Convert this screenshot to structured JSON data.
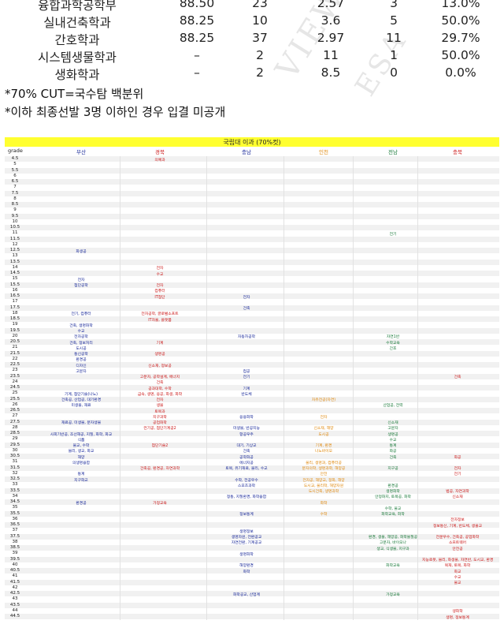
{
  "table": {
    "rows": [
      {
        "dept": "융합과학공학부",
        "c1": "88.50",
        "c2": "23",
        "c3": "2.57",
        "c4": "3",
        "c5": "13.0%"
      },
      {
        "dept": "실내건축학과",
        "c1": "88.25",
        "c2": "10",
        "c3": "3.6",
        "c4": "5",
        "c5": "50.0%"
      },
      {
        "dept": "간호학과",
        "c1": "88.25",
        "c2": "37",
        "c3": "2.97",
        "c4": "11",
        "c5": "29.7%"
      },
      {
        "dept": "시스템생물학과",
        "c1": "–",
        "c2": "2",
        "c3": "11",
        "c4": "1",
        "c5": "50.0%"
      },
      {
        "dept": "생화학과",
        "c1": "–",
        "c2": "2",
        "c3": "8.5",
        "c4": "0",
        "c5": "0.0%"
      }
    ],
    "notes": [
      "*70% CUT=국수탐 백분위",
      "*이하 최종선발 3명 이하인 경우 입결 미공개"
    ]
  },
  "sheet": {
    "title": "국립대 이과 (70%컷)",
    "corner": "grade",
    "regions": [
      "부산",
      "경북",
      "충남",
      "인천",
      "전남",
      "충북"
    ],
    "region_colors": [
      "#1a2a9a",
      "#cc1a1a",
      "#1a2a9a",
      "#e08a10",
      "#1a7a3a",
      "#cc1a1a"
    ],
    "levels": [
      "4.5",
      "5",
      "5.5",
      "6",
      "6.5",
      "7",
      "7.5",
      "8",
      "8.5",
      "9",
      "9.5",
      "10",
      "10.5",
      "11",
      "11.5",
      "12",
      "12.5",
      "13",
      "13.5",
      "14",
      "14.5",
      "15",
      "15.5",
      "16",
      "16.5",
      "17",
      "17.5",
      "18",
      "18.5",
      "19",
      "19.5",
      "20",
      "20.5",
      "21",
      "21.5",
      "22",
      "22.5",
      "23",
      "23.5",
      "24",
      "24.5",
      "25",
      "25.5",
      "26",
      "26.5",
      "27",
      "27.5",
      "28",
      "28.5",
      "29",
      "29.5",
      "30",
      "30.5",
      "31",
      "31.5",
      "32",
      "32.5",
      "33",
      "33.5",
      "34",
      "34.5",
      "35",
      "35.5",
      "36",
      "36.5",
      "37",
      "37.5",
      "38",
      "38.5",
      "39",
      "39.5",
      "40",
      "40.5",
      "41",
      "41.5",
      "42",
      "42.5",
      "43",
      "43.5",
      "44",
      "44.5"
    ],
    "entries": [
      {
        "row": 0,
        "col": 1,
        "text": "의예과"
      },
      {
        "row": 13,
        "col": 4,
        "text": "전기"
      },
      {
        "row": 16,
        "col": 0,
        "text": "화생공"
      },
      {
        "row": 19,
        "col": 1,
        "text": "전자"
      },
      {
        "row": 20,
        "col": 1,
        "text": "수교"
      },
      {
        "row": 21,
        "col": 0,
        "text": "전자"
      },
      {
        "row": 22,
        "col": 0,
        "text": "첨단공학"
      },
      {
        "row": 22,
        "col": 1,
        "text": "전자"
      },
      {
        "row": 23,
        "col": 1,
        "text": "컴퓨터"
      },
      {
        "row": 24,
        "col": 1,
        "text": "IT첨단"
      },
      {
        "row": 24,
        "col": 2,
        "text": "전자"
      },
      {
        "row": 26,
        "col": 2,
        "text": "건축"
      },
      {
        "row": 27,
        "col": 0,
        "text": "전기, 컴퓨터"
      },
      {
        "row": 27,
        "col": 1,
        "text": "전자공학, 글로벌소프트"
      },
      {
        "row": 28,
        "col": 1,
        "text": "IT자율, 플랫폼"
      },
      {
        "row": 29,
        "col": 0,
        "text": "건축, 생명화학"
      },
      {
        "row": 30,
        "col": 0,
        "text": "수교"
      },
      {
        "row": 31,
        "col": 0,
        "text": "전자공학"
      },
      {
        "row": 31,
        "col": 2,
        "text": "자동차공학"
      },
      {
        "row": 31,
        "col": 4,
        "text": "자연1반"
      },
      {
        "row": 32,
        "col": 0,
        "text": "건축, 정보처리"
      },
      {
        "row": 32,
        "col": 1,
        "text": "기계"
      },
      {
        "row": 32,
        "col": 4,
        "text": "수학교육"
      },
      {
        "row": 33,
        "col": 0,
        "text": "도시공"
      },
      {
        "row": 33,
        "col": 4,
        "text": "간호"
      },
      {
        "row": 34,
        "col": 0,
        "text": "통신공학"
      },
      {
        "row": 34,
        "col": 1,
        "text": "생명공"
      },
      {
        "row": 35,
        "col": 0,
        "text": "환경공"
      },
      {
        "row": 36,
        "col": 0,
        "text": "디자인"
      },
      {
        "row": 36,
        "col": 1,
        "text": "신소재, 정보공"
      },
      {
        "row": 37,
        "col": 0,
        "text": "고분자"
      },
      {
        "row": 37,
        "col": 2,
        "text": "컴공"
      },
      {
        "row": 38,
        "col": 1,
        "text": "고분자, 공학설계, 에너지"
      },
      {
        "row": 38,
        "col": 2,
        "text": "전기"
      },
      {
        "row": 38,
        "col": 5,
        "text": "건축"
      },
      {
        "row": 39,
        "col": 1,
        "text": "건축"
      },
      {
        "row": 40,
        "col": 1,
        "text": "공과대학, 수학"
      },
      {
        "row": 40,
        "col": 2,
        "text": "기계"
      },
      {
        "row": 41,
        "col": 0,
        "text": "기계, 첨단기술(나노)"
      },
      {
        "row": 41,
        "col": 1,
        "text": "금속, 생명, 응공, 화생, 화학"
      },
      {
        "row": 41,
        "col": 2,
        "text": "반도체"
      },
      {
        "row": 42,
        "col": 0,
        "text": "건축공, 산업공, 대기환경"
      },
      {
        "row": 42,
        "col": 1,
        "text": "전자"
      },
      {
        "row": 42,
        "col": 3,
        "text": "자유전공(자연)"
      },
      {
        "row": 43,
        "col": 0,
        "text": "미생물, 재료"
      },
      {
        "row": 43,
        "col": 1,
        "text": "생물"
      },
      {
        "row": 43,
        "col": 4,
        "text": "산업공, 전력"
      },
      {
        "row": 44,
        "col": 1,
        "text": "토목과"
      },
      {
        "row": 45,
        "col": 1,
        "text": "지구과학"
      },
      {
        "row": 45,
        "col": 2,
        "text": "응용화학"
      },
      {
        "row": 45,
        "col": 3,
        "text": "전자"
      },
      {
        "row": 46,
        "col": 0,
        "text": "재료공, 미생물, 분자생물"
      },
      {
        "row": 46,
        "col": 1,
        "text": "공업화학"
      },
      {
        "row": 46,
        "col": 4,
        "text": "신소재"
      },
      {
        "row": 47,
        "col": 1,
        "text": "컨기공, 첨단기계공2"
      },
      {
        "row": 47,
        "col": 2,
        "text": "미생물, 반공지능"
      },
      {
        "row": 47,
        "col": 3,
        "text": "신소재, 해양"
      },
      {
        "row": 47,
        "col": 4,
        "text": "고분자"
      },
      {
        "row": 48,
        "col": 0,
        "text": "사회기반공, 조선해공, 지질, 화학, 화교"
      },
      {
        "row": 48,
        "col": 2,
        "text": "항공우주"
      },
      {
        "row": 48,
        "col": 3,
        "text": "도시공"
      },
      {
        "row": 48,
        "col": 4,
        "text": "생명공"
      },
      {
        "row": 49,
        "col": 0,
        "text": "식품"
      },
      {
        "row": 49,
        "col": 4,
        "text": "수교"
      },
      {
        "row": 50,
        "col": 0,
        "text": "물교, 수학"
      },
      {
        "row": 50,
        "col": 1,
        "text": "첨단기술2"
      },
      {
        "row": 50,
        "col": 2,
        "text": "대기, 기상교"
      },
      {
        "row": 50,
        "col": 3,
        "text": "기계, 환경"
      },
      {
        "row": 50,
        "col": 4,
        "text": "통계"
      },
      {
        "row": 51,
        "col": 0,
        "text": "물리, 생교, 화교"
      },
      {
        "row": 51,
        "col": 2,
        "text": "건축"
      },
      {
        "row": 51,
        "col": 3,
        "text": "나노바이오"
      },
      {
        "row": 51,
        "col": 4,
        "text": "화공"
      },
      {
        "row": 52,
        "col": 0,
        "text": "해양"
      },
      {
        "row": 52,
        "col": 2,
        "text": "공학화공"
      },
      {
        "row": 52,
        "col": 4,
        "text": "건축"
      },
      {
        "row": 52,
        "col": 5,
        "text": "화공"
      },
      {
        "row": 53,
        "col": 0,
        "text": "의생명융합"
      },
      {
        "row": 53,
        "col": 2,
        "text": "에너지공"
      },
      {
        "row": 53,
        "col": 3,
        "text": "물리, 생명과, 컴퓨터공"
      },
      {
        "row": 54,
        "col": 1,
        "text": "건축공, 환경공, 자연과학"
      },
      {
        "row": 54,
        "col": 2,
        "text": "토목, 유기재료, 물리, 수교"
      },
      {
        "row": 54,
        "col": 3,
        "text": "분자의학, 생명과학, 해양공"
      },
      {
        "row": 54,
        "col": 4,
        "text": "지구공"
      },
      {
        "row": 54,
        "col": 5,
        "text": "전자"
      },
      {
        "row": 55,
        "col": 0,
        "text": "통계"
      },
      {
        "row": 55,
        "col": 3,
        "text": "안전"
      },
      {
        "row": 55,
        "col": 5,
        "text": "전기"
      },
      {
        "row": 56,
        "col": 0,
        "text": "지구화교"
      },
      {
        "row": 56,
        "col": 2,
        "text": "수학, 전공우수"
      },
      {
        "row": 56,
        "col": 3,
        "text": "전자공, 해양교, 정화, 해양"
      },
      {
        "row": 57,
        "col": 2,
        "text": "스포츠과학"
      },
      {
        "row": 57,
        "col": 3,
        "text": "도시교, 물리학, 해양자원"
      },
      {
        "row": 57,
        "col": 4,
        "text": "환경공"
      },
      {
        "row": 58,
        "col": 3,
        "text": "도시건축, 생명과학"
      },
      {
        "row": 58,
        "col": 4,
        "text": "생명화학"
      },
      {
        "row": 58,
        "col": 5,
        "text": "법공, 자연과학"
      },
      {
        "row": 59,
        "col": 2,
        "text": "정통, 지질환경, 화학융합"
      },
      {
        "row": 59,
        "col": 4,
        "text": "안정화지, 토목공, 화학"
      },
      {
        "row": 59,
        "col": 5,
        "text": "신소재"
      },
      {
        "row": 60,
        "col": 0,
        "text": "환경공"
      },
      {
        "row": 60,
        "col": 1,
        "text": "가정교육"
      },
      {
        "row": 60,
        "col": 3,
        "text": "화학"
      },
      {
        "row": 61,
        "col": 4,
        "text": "수학, 물교"
      },
      {
        "row": 62,
        "col": 2,
        "text": "정보통계"
      },
      {
        "row": 62,
        "col": 3,
        "text": "수학"
      },
      {
        "row": 62,
        "col": 4,
        "text": "화학교육, 화학"
      },
      {
        "row": 63,
        "col": 5,
        "text": "전자정보"
      },
      {
        "row": 64,
        "col": 5,
        "text": "정보통신, 기계, 반도체, 생물교"
      },
      {
        "row": 65,
        "col": 2,
        "text": "생명정보"
      },
      {
        "row": 66,
        "col": 2,
        "text": "생명자원, 전환공교"
      },
      {
        "row": 66,
        "col": 4,
        "text": "환경, 생물, 해양공, 화학물질공"
      },
      {
        "row": 66,
        "col": 5,
        "text": "전문우수, 건축공, 공업화학"
      },
      {
        "row": 67,
        "col": 2,
        "text": "자연전환, 기계공교"
      },
      {
        "row": 67,
        "col": 4,
        "text": "고분자, 바이오나"
      },
      {
        "row": 67,
        "col": 5,
        "text": "소프트웨어"
      },
      {
        "row": 68,
        "col": 4,
        "text": "생교, 식생물, 지구과"
      },
      {
        "row": 68,
        "col": 5,
        "text": "안전공"
      },
      {
        "row": 69,
        "col": 2,
        "text": "생명화학"
      },
      {
        "row": 70,
        "col": 5,
        "text": "지능로봇, 물리, 화생물, 자연반, 도시교, 환경"
      },
      {
        "row": 71,
        "col": 2,
        "text": "해양환경"
      },
      {
        "row": 71,
        "col": 4,
        "text": "화학교육"
      },
      {
        "row": 71,
        "col": 5,
        "text": "목재, 토목, 화학"
      },
      {
        "row": 72,
        "col": 2,
        "text": "화학"
      },
      {
        "row": 72,
        "col": 5,
        "text": "화교"
      },
      {
        "row": 73,
        "col": 5,
        "text": "수교"
      },
      {
        "row": 74,
        "col": 5,
        "text": "물교"
      },
      {
        "row": 76,
        "col": 2,
        "text": "화학공교, 산업계"
      },
      {
        "row": 76,
        "col": 4,
        "text": "가정교육"
      },
      {
        "row": 79,
        "col": 5,
        "text": "생화학"
      },
      {
        "row": 80,
        "col": 5,
        "text": "생명, 정보통계"
      }
    ]
  }
}
